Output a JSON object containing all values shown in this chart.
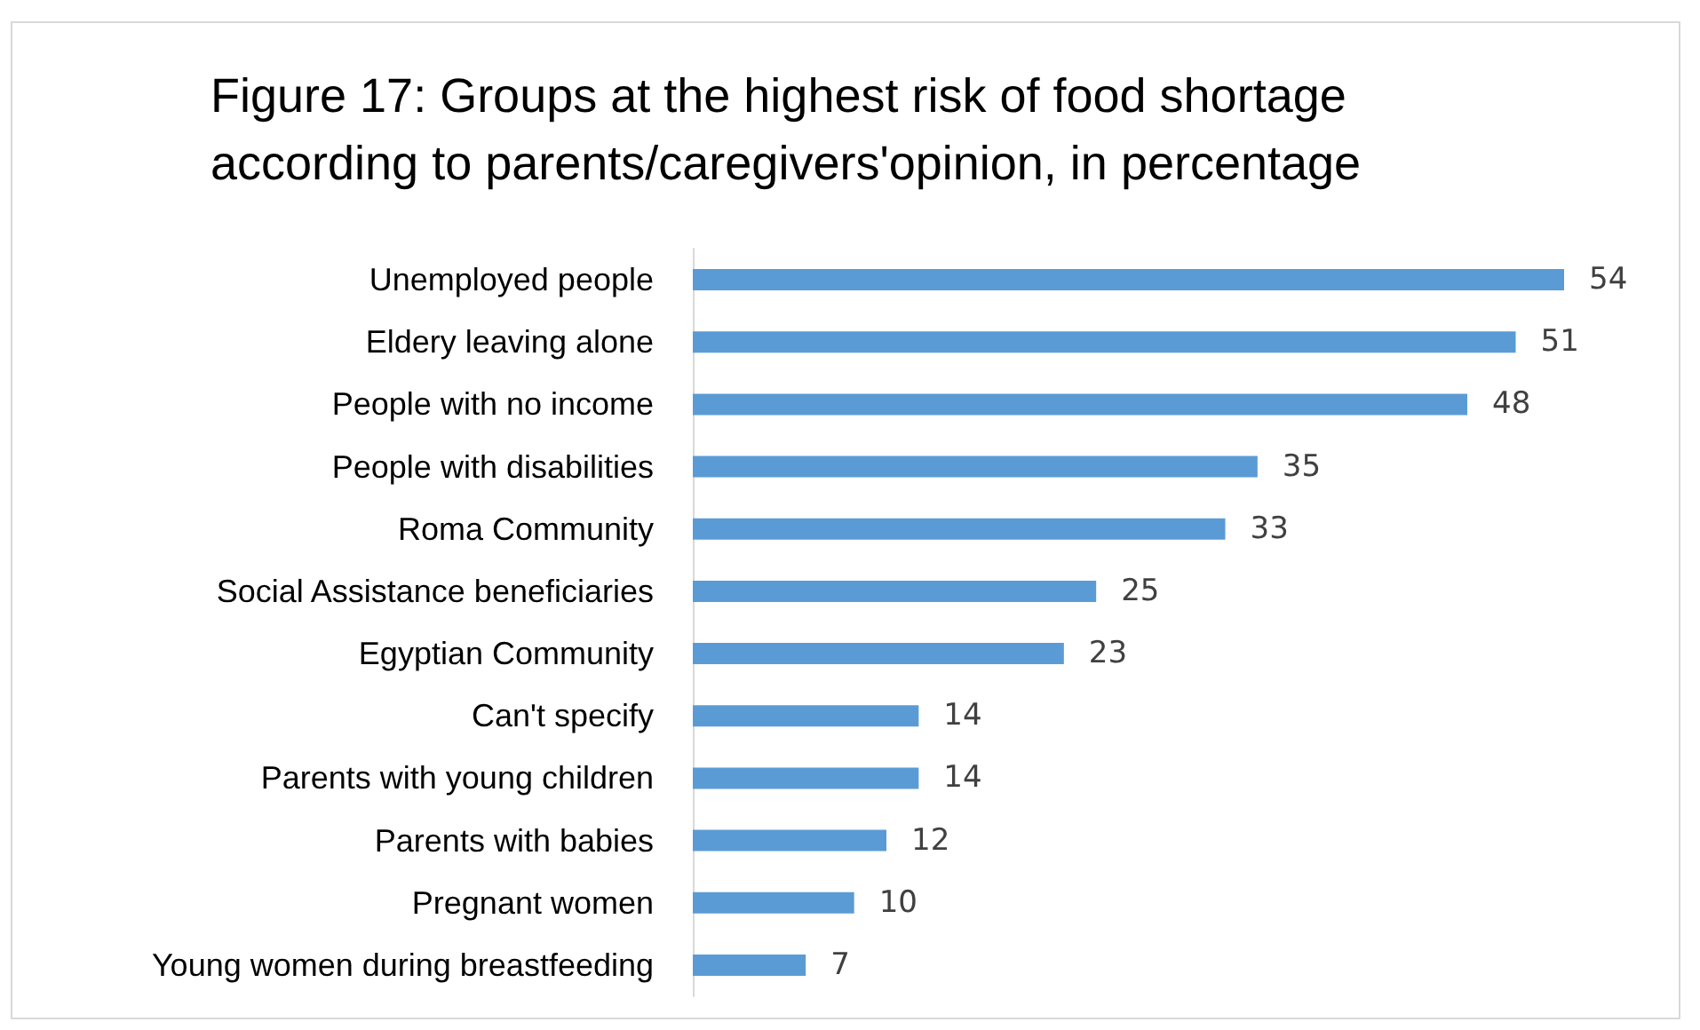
{
  "chart_data": {
    "type": "bar",
    "orientation": "horizontal",
    "title": "Figure 17: Groups at the highest risk of food shortage according to parents/caregivers'opinion, in percentage",
    "categories": [
      "Unemployed people",
      "Eldery leaving alone",
      "People with no income",
      "People with disabilities",
      "Roma Community",
      "Social Assistance beneficiaries",
      "Egyptian Community",
      "Can't specify",
      "Parents with young children",
      "Parents with babies",
      "Pregnant women",
      "Young women during breastfeeding"
    ],
    "values": [
      54,
      51,
      48,
      35,
      33,
      25,
      23,
      14,
      14,
      12,
      10,
      7
    ],
    "color": "#5b9bd5",
    "data_labels": true
  }
}
